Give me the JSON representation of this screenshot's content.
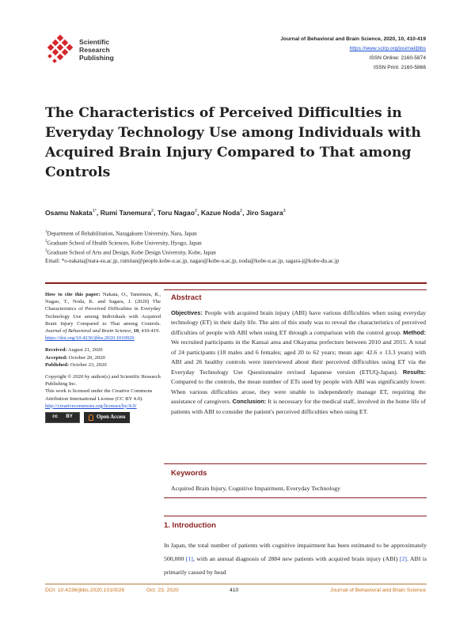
{
  "header": {
    "publisher_name": [
      "Scientific",
      "Research",
      "Publishing"
    ],
    "journal_name": "Journal of Behavioral and Brain Science, 2020, 10, 410-419",
    "url": "https://www.scirp.org/journal/jbbs",
    "issn_online": "ISSN Online: 2160-5874",
    "issn_print": "ISSN Print: 2160-5866"
  },
  "title": "The Characteristics of Perceived Difficulties in Everyday Technology Use among Individuals with Acquired Brain Injury Compared to That among Controls",
  "authors": [
    {
      "name": "Osamu Nakata",
      "sup": "1*"
    },
    {
      "name": "Rumi Tanemura",
      "sup": "2"
    },
    {
      "name": "Toru Nagao",
      "sup": "2"
    },
    {
      "name": "Kazue Noda",
      "sup": "2"
    },
    {
      "name": "Jiro Sagara",
      "sup": "3"
    }
  ],
  "affiliations": [
    {
      "sup": "1",
      "text": "Department of Rehabilitation, Naragakuen University, Nara, Japan"
    },
    {
      "sup": "2",
      "text": "Graduate School of Health Sciences, Kobe University, Hyogo, Japan"
    },
    {
      "sup": "3",
      "text": "Graduate School of Arts and Design, Kobe Design University, Kobe, Japan"
    }
  ],
  "email": "Email: *o-nakata@nara-su.ac.jp, rumitan@people.kobe-u.ac.jp, nagao@kobe-u.ac.jp, noda@kobe-u.ac.jp, sagara-j@kobe-du.ac.jp",
  "sidebar": {
    "cite_label": "How to cite this paper:",
    "cite_text": "Nakata, O., Tanemura, R., Nagao, T., Noda, K. and Sagara, J. (2020) The Characteristics of Perceived Difficulties in Everyday Technology Use among Individuals with Acquired Brain Injury Compared to That among Controls.",
    "cite_journal": "Journal of Behavioral and Brain Science",
    "cite_volume": "10",
    "cite_pages": ", 410-419.",
    "cite_doi": "https://doi.org/10.4236/jbbs.2020.1010026",
    "received_label": "Received:",
    "received": "August 21, 2020",
    "accepted_label": "Accepted:",
    "accepted": "October 20, 2020",
    "published_label": "Published:",
    "published": "October 23, 2020",
    "copyright_1": "Copyright © 2020 by author(s) and Scientific Research Publishing Inc.",
    "copyright_2": "This work is licensed under the Creative Commons Attribution International License (CC BY 4.0).",
    "license_url": "http://creativecommons.org/licenses/by/4.0/",
    "cc_badge": "cc",
    "cc_by": "BY",
    "open_access": "Open Access"
  },
  "abstract": {
    "heading": "Abstract",
    "objectives_label": "Objectives:",
    "objectives": "People with acquired brain injury (ABI) have various difficulties when using everyday technology (ET) in their daily life. The aim of this study was to reveal the characteristics of perceived difficulties of people with ABI when using ET through a comparison with the control group.",
    "method_label": "Method:",
    "method": "We recruited participants in the Kansai area and Okayama prefecture between 2010 and 2015. A total of 24 participants (18 males and 6 females; aged 20 to 62 years; mean age: 42.6 ± 13.3 years) with ABI and 26 healthy controls were interviewed about their perceived difficulties using ET via the Everyday Technology Use Questionnaire revised Japanese version (ETUQ-Japan).",
    "results_label": "Results:",
    "results": "Compared to the controls, the mean number of ETs used by people with ABI was significantly lower. When various difficulties arose, they were unable to independently manage ET, requiring the assistance of caregivers.",
    "conclusion_label": "Conclusion:",
    "conclusion": "It is necessary for the medical staff, involved in the home life of patients with ABI to consider the patient's perceived difficulties when using ET."
  },
  "keywords": {
    "heading": "Keywords",
    "text": "Acquired Brain Injury, Cognitive Impairment, Everyday Technology"
  },
  "intro": {
    "heading": "1. Introduction",
    "text_1": "In Japan, the total number of patients with cognitive impairment has been estimated to be approximately 500,000 ",
    "ref_1": "[1]",
    "text_2": ", with an annual diagnosis of 2884 new patients with acquired brain injury (ABI) ",
    "ref_2": "[2]",
    "text_3": ". ABI is primarily caused by head"
  },
  "footer": {
    "doi": "DOI: 10.4236/jbbs.2020.1010026",
    "date": "Oct. 23, 2020",
    "page": "410",
    "journal": "Journal of Behavioral and Brain Science"
  },
  "colors": {
    "accent": "#8a1f1f",
    "logo_red": "#d4262c",
    "link": "#1a4fd0",
    "footer": "#c8741e"
  }
}
